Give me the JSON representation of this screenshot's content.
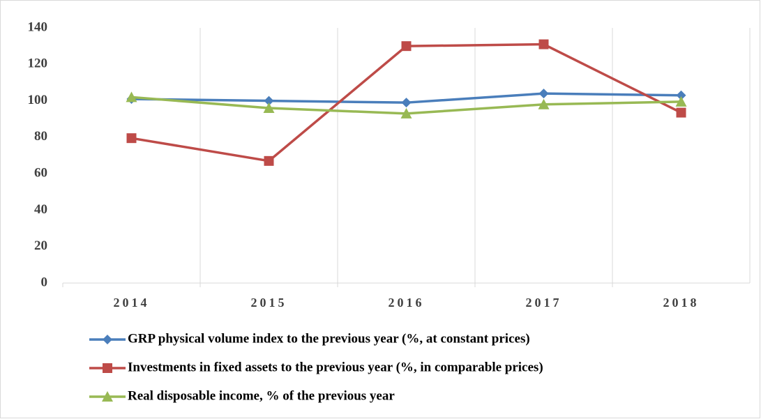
{
  "chart_data": {
    "type": "line",
    "categories": [
      "2014",
      "2015",
      "2016",
      "2017",
      "2018"
    ],
    "series": [
      {
        "name": "GRP physical volume index to the previous year (%, at constant prices)",
        "color": "#4a7ebb",
        "marker": "diamond",
        "values": [
          101,
          100,
          99,
          104,
          103
        ]
      },
      {
        "name": "Investments in fixed assets to the previous year (%, in comparable prices)",
        "color": "#be4b48",
        "marker": "square",
        "values": [
          79.5,
          67,
          130,
          131,
          93.5
        ]
      },
      {
        "name": "Real disposable income, % of the previous year",
        "color": "#98b954",
        "marker": "triangle",
        "values": [
          102,
          96,
          93,
          98,
          99.5
        ]
      }
    ],
    "ylim": [
      0,
      140
    ],
    "yticks": [
      0,
      20,
      40,
      60,
      80,
      100,
      120,
      140
    ],
    "grid": true,
    "legend": "bottom"
  }
}
